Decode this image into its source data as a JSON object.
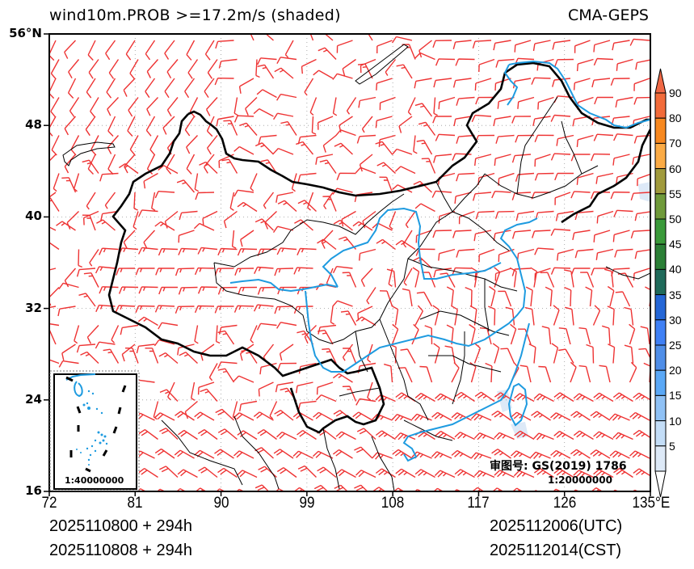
{
  "header": {
    "title": "wind10m.PROB >=17.2m/s (shaded)",
    "model": "CMA-GEPS"
  },
  "map": {
    "lat_labels": [
      "56°N",
      "48",
      "40",
      "32",
      "24",
      "16"
    ],
    "lon_labels": [
      "72",
      "81",
      "90",
      "99",
      "108",
      "117",
      "126",
      "135°E"
    ],
    "lat_range": [
      16,
      56
    ],
    "lon_range": [
      72,
      135
    ],
    "barb_color": "#ee3333",
    "river_color": "#1e9be0",
    "border_color": "#000000",
    "approval_number": "审图号: GS(2019) 1786",
    "main_scale": "1:20000000",
    "inset_scale": "1:40000000"
  },
  "colorbar": {
    "labels": [
      "90",
      "80",
      "70",
      "60",
      "55",
      "50",
      "45",
      "40",
      "35",
      "30",
      "25",
      "20",
      "15",
      "10",
      "5"
    ],
    "colors": [
      "#f26b3a",
      "#f7881f",
      "#fbab45",
      "#a09a3c",
      "#6f9a3a",
      "#3a9a3a",
      "#2b7f36",
      "#1f6a5a",
      "#2466d6",
      "#3f80f5",
      "#4f8ee8",
      "#5aa8f6",
      "#8fc1f5",
      "#c3ddf7",
      "#dde9f7"
    ],
    "top_arrow_color": "#f06845",
    "bottom_arrow_color": "#ffffff"
  },
  "footer": {
    "init_utc": "2025110800 + 294h",
    "init_cst": "2025110808 + 294h",
    "valid_utc": "2025112006(UTC)",
    "valid_cst": "2025112014(CST)"
  }
}
